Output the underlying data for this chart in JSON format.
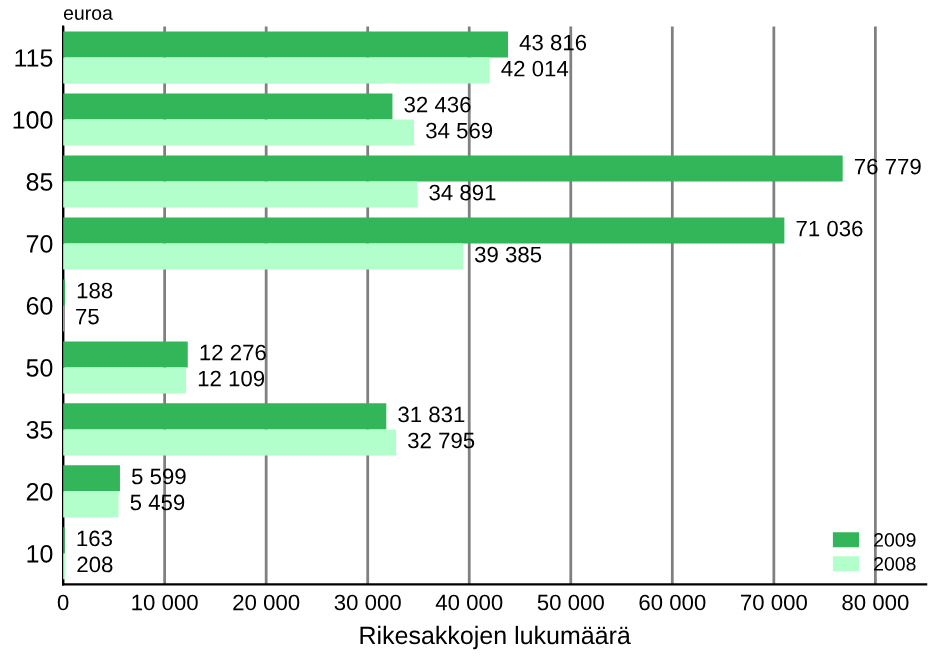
{
  "chart_data": {
    "type": "bar",
    "orientation": "horizontal",
    "ylabel": "euroa",
    "xlabel": "Rikesakkojen lukumäärä",
    "categories": [
      "115",
      "100",
      "85",
      "70",
      "60",
      "50",
      "35",
      "20",
      "10"
    ],
    "series": [
      {
        "name": "2009",
        "color": "#33b55a",
        "values": [
          43816,
          32436,
          76779,
          71036,
          188,
          12276,
          31831,
          5599,
          163
        ],
        "value_labels": [
          "43 816",
          "32 436",
          "76 779",
          "71 036",
          "188",
          "12 276",
          "31 831",
          "5 599",
          "163"
        ]
      },
      {
        "name": "2008",
        "color": "#b3ffcc",
        "values": [
          42014,
          34569,
          34891,
          39385,
          75,
          12109,
          32795,
          5459,
          208
        ],
        "value_labels": [
          "42 014",
          "34 569",
          "34 891",
          "39 385",
          "75",
          "12 109",
          "32 795",
          "5 459",
          "208"
        ]
      }
    ],
    "xlim": [
      0,
      85000
    ],
    "xticks": [
      0,
      {
        "value": 10000,
        "label": "10 000"
      },
      {
        "value": 20000,
        "label": "20 000"
      },
      {
        "value": 30000,
        "label": "30 000"
      },
      {
        "value": 40000,
        "label": "40 000"
      },
      {
        "value": 50000,
        "label": "50 000"
      },
      {
        "value": 60000,
        "label": "60 000"
      },
      {
        "value": 70000,
        "label": "70 000"
      },
      {
        "value": 80000,
        "label": "80 000"
      }
    ],
    "grid": "x",
    "legend": "bottom right"
  }
}
